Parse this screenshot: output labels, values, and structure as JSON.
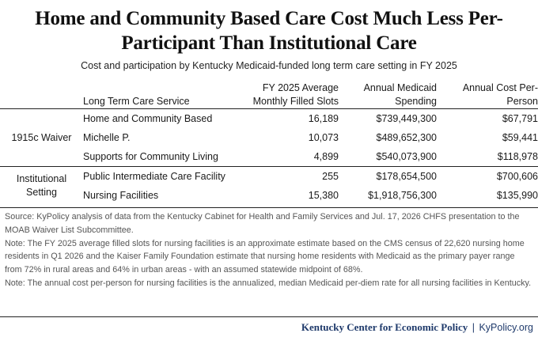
{
  "title": "Home and Community Based Care Cost Much Less Per-Participant Than Institutional Care",
  "subtitle": "Cost and participation by Kentucky Medicaid-funded long term care setting in FY 2025",
  "table": {
    "headers": {
      "service": "Long Term Care Service",
      "slots": "FY 2025 Average Monthly Filled Slots",
      "spending": "Annual Medicaid Spending",
      "cost": "Annual Cost Per-Person"
    },
    "groups": [
      {
        "label": "1915c Waiver",
        "rows": [
          {
            "service": "Home and Community Based",
            "slots": "16,189",
            "spending": "$739,449,300",
            "cost": "$67,791"
          },
          {
            "service": "Michelle P.",
            "slots": "10,073",
            "spending": "$489,652,300",
            "cost": "$59,441"
          },
          {
            "service": "Supports for Community Living",
            "slots": "4,899",
            "spending": "$540,073,900",
            "cost": "$118,978"
          }
        ]
      },
      {
        "label": "Institutional Setting",
        "rows": [
          {
            "service": "Public Intermediate Care Facility",
            "slots": "255",
            "spending": "$178,654,500",
            "cost": "$700,606"
          },
          {
            "service": "Nursing Facilities",
            "slots": "15,380",
            "spending": "$1,918,756,300",
            "cost": "$135,990"
          }
        ]
      }
    ]
  },
  "notes": [
    "Source: KyPolicy analysis of data from the Kentucky Cabinet for Health and Family Services and Jul. 17, 2026 CHFS presentation to the MOAB Waiver List Subcommittee.",
    "Note: The FY 2025 average filled slots for nursing facilities is an approximate estimate based on the CMS census of 22,620 nursing home residents in Q1 2026 and the Kaiser Family Foundation  estimate that nursing home residents with Medicaid as the primary payer range from 72% in rural areas and 64% in urban areas - with an assumed statewide midpoint of 68%.",
    "Note: The annual cost per-person for nursing facilities is the annualized, median Medicaid per-diem rate for all nursing facilities in Kentucky."
  ],
  "footer": {
    "org": "Kentucky Center for Economic Policy",
    "separator": "|",
    "site": "KyPolicy.org"
  }
}
